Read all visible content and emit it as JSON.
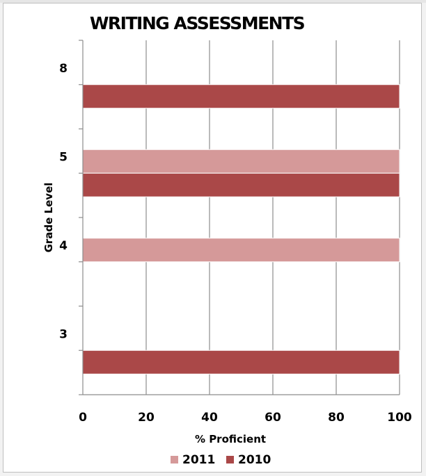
{
  "chart_data": {
    "type": "bar",
    "orientation": "horizontal",
    "title": "WRITING ASSESSMENTS",
    "xlabel": "% Proficient",
    "ylabel": "Grade Level",
    "xlim": [
      0,
      100
    ],
    "x_ticks": [
      "0",
      "20",
      "40",
      "60",
      "80",
      "100"
    ],
    "categories": [
      "3",
      "4",
      "5",
      "8"
    ],
    "series": [
      {
        "name": "2011",
        "color": "#d59999",
        "values": [
          null,
          100,
          100,
          null
        ]
      },
      {
        "name": "2010",
        "color": "#aa4848",
        "values": [
          100,
          null,
          100,
          100
        ]
      }
    ],
    "legend": "bottom",
    "grid": "vertical"
  }
}
